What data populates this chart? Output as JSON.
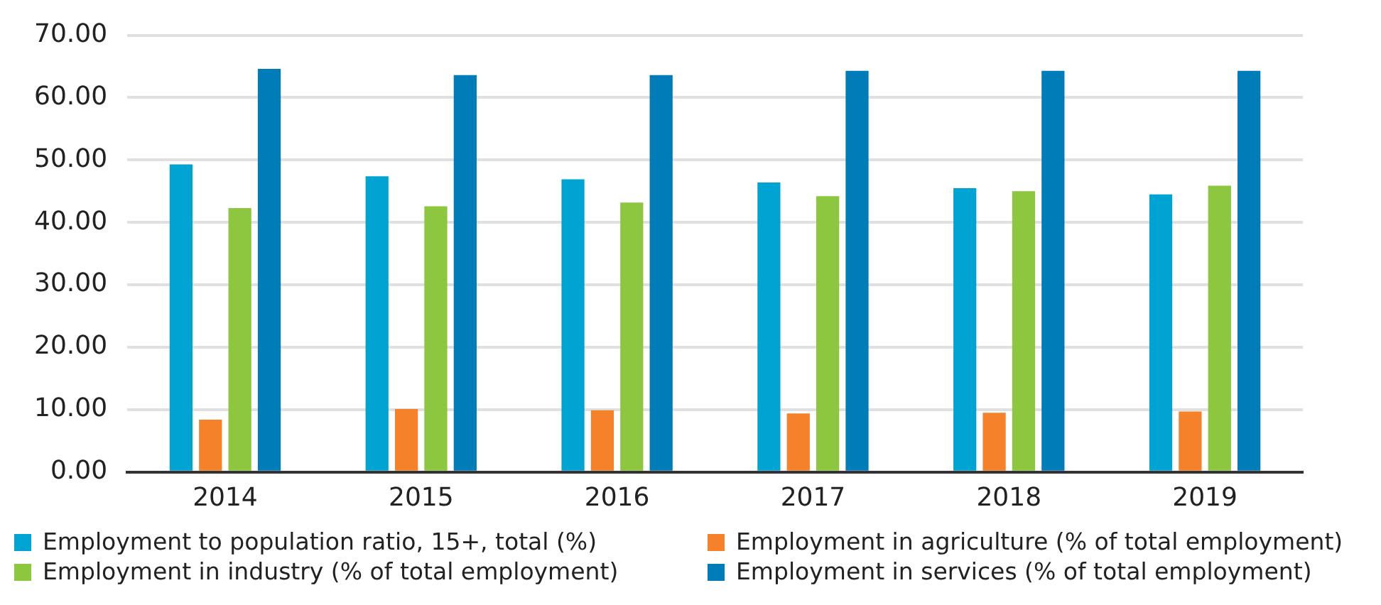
{
  "chart_data": {
    "type": "bar",
    "categories": [
      "2014",
      "2015",
      "2016",
      "2017",
      "2018",
      "2019"
    ],
    "series": [
      {
        "name": "Employment to population ratio, 15+, total (%)",
        "color": "#00a4d3",
        "values": [
          49.3,
          47.4,
          46.9,
          46.4,
          45.5,
          44.5
        ]
      },
      {
        "name": "Employment in agriculture (% of total employment)",
        "color": "#f5822a",
        "values": [
          8.4,
          10.1,
          9.9,
          9.4,
          9.5,
          9.7
        ]
      },
      {
        "name": "Employment in industry (% of total employment)",
        "color": "#8dc63f",
        "values": [
          42.3,
          42.6,
          43.2,
          44.2,
          45.0,
          45.9
        ]
      },
      {
        "name": "Employment in services (% of total employment)",
        "color": "#007db8",
        "values": [
          64.6,
          63.6,
          63.6,
          64.3,
          64.3,
          64.3
        ]
      }
    ],
    "ylim": [
      0,
      70
    ],
    "yticks": [
      {
        "value": 0,
        "label": "0.00"
      },
      {
        "value": 10,
        "label": "10.00"
      },
      {
        "value": 20,
        "label": "20.00"
      },
      {
        "value": 30,
        "label": "30.00"
      },
      {
        "value": 40,
        "label": "40.00"
      },
      {
        "value": 50,
        "label": "50.00"
      },
      {
        "value": 60,
        "label": "60.00"
      },
      {
        "value": 70,
        "label": "70.00"
      }
    ],
    "grid": "y",
    "legend": "bottom"
  }
}
